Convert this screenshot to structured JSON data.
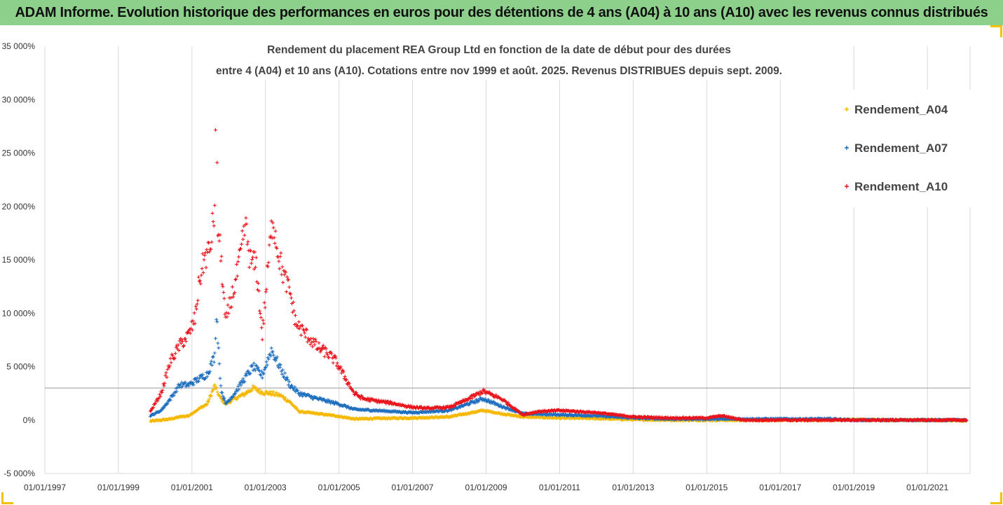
{
  "header": {
    "title": "ADAM Informe. Evolution historique des performances en euros pour des détentions de 4 ans (A04) à 10 ans (A10) avec les revenus connus distribués"
  },
  "colors": {
    "header_bg": "#8dd08b",
    "frame_accent": "#f2c200",
    "A04": "#f5b800",
    "A07": "#1f6fbf",
    "A10": "#e8141c"
  },
  "chart_data": {
    "type": "scatter",
    "title_line1": "Rendement du placement REA Group Ltd en fonction de la date de début pour des durées",
    "title_line2": "entre 4 (A04) et 10 ans (A10). Cotations entre nov 1999 et août. 2025. Revenus DISTRIBUES depuis sept. 2009.",
    "xlabel": "",
    "ylabel": "",
    "xlim": [
      "1997-01-01",
      "2022-03-01"
    ],
    "ylim": [
      -5000,
      35000
    ],
    "y_ticks": [
      -5000,
      0,
      5000,
      10000,
      15000,
      20000,
      25000,
      30000,
      35000
    ],
    "y_tick_labels": [
      "-5 000%",
      "0%",
      "5 000%",
      "10 000%",
      "15 000%",
      "20 000%",
      "25 000%",
      "30 000%",
      "35 000%"
    ],
    "x_tick_labels": [
      "01/01/1997",
      "01/01/1999",
      "01/01/2001",
      "01/01/2003",
      "01/01/2005",
      "01/01/2007",
      "01/01/2009",
      "01/01/2011",
      "01/01/2013",
      "01/01/2015",
      "01/01/2017",
      "01/01/2019",
      "01/01/2021"
    ],
    "reference_line_y": 3000,
    "grid": "vertical",
    "legend_position": "right",
    "series": [
      {
        "name": "Rendement_A04",
        "color": "#f5b800",
        "points": [
          [
            "1999-11-15",
            -100
          ],
          [
            "2000-03-01",
            0
          ],
          [
            "2000-06-01",
            100
          ],
          [
            "2000-09-01",
            300
          ],
          [
            "2000-12-01",
            400
          ],
          [
            "2001-03-01",
            1000
          ],
          [
            "2001-06-01",
            1500
          ],
          [
            "2001-08-15",
            3200
          ],
          [
            "2001-10-01",
            2200
          ],
          [
            "2001-12-01",
            1500
          ],
          [
            "2002-03-01",
            2000
          ],
          [
            "2002-06-01",
            2400
          ],
          [
            "2002-09-01",
            3000
          ],
          [
            "2002-12-01",
            2600
          ],
          [
            "2003-03-01",
            2500
          ],
          [
            "2003-06-01",
            2300
          ],
          [
            "2003-09-01",
            1700
          ],
          [
            "2003-12-01",
            800
          ],
          [
            "2004-06-01",
            600
          ],
          [
            "2004-12-01",
            400
          ],
          [
            "2005-06-01",
            100
          ],
          [
            "2006-01-01",
            150
          ],
          [
            "2007-01-01",
            200
          ],
          [
            "2008-01-01",
            300
          ],
          [
            "2008-12-01",
            900
          ],
          [
            "2009-06-01",
            600
          ],
          [
            "2010-01-01",
            300
          ],
          [
            "2011-01-01",
            200
          ],
          [
            "2012-01-01",
            150
          ],
          [
            "2013-01-01",
            50
          ],
          [
            "2014-01-01",
            0
          ],
          [
            "2015-01-01",
            0
          ],
          [
            "2016-01-01",
            0
          ],
          [
            "2017-01-01",
            0
          ],
          [
            "2018-01-01",
            0
          ],
          [
            "2019-01-01",
            50
          ],
          [
            "2020-01-01",
            0
          ],
          [
            "2021-01-01",
            0
          ],
          [
            "2022-02-01",
            -50
          ]
        ]
      },
      {
        "name": "Rendement_A07",
        "color": "#1f6fbf",
        "points": [
          [
            "1999-11-15",
            400
          ],
          [
            "2000-03-01",
            900
          ],
          [
            "2000-06-01",
            2000
          ],
          [
            "2000-09-01",
            3300
          ],
          [
            "2000-12-01",
            3300
          ],
          [
            "2001-03-01",
            3800
          ],
          [
            "2001-06-01",
            4300
          ],
          [
            "2001-08-15",
            6000
          ],
          [
            "2001-09-01",
            10200
          ],
          [
            "2001-10-15",
            3000
          ],
          [
            "2001-12-01",
            1500
          ],
          [
            "2002-03-01",
            2500
          ],
          [
            "2002-06-01",
            3800
          ],
          [
            "2002-09-01",
            5000
          ],
          [
            "2002-12-01",
            4200
          ],
          [
            "2003-03-01",
            6600
          ],
          [
            "2003-06-01",
            4800
          ],
          [
            "2003-09-01",
            3300
          ],
          [
            "2003-12-01",
            2500
          ],
          [
            "2004-06-01",
            2000
          ],
          [
            "2005-01-01",
            1500
          ],
          [
            "2005-06-01",
            1000
          ],
          [
            "2006-01-01",
            900
          ],
          [
            "2007-01-01",
            700
          ],
          [
            "2008-01-01",
            900
          ],
          [
            "2008-12-01",
            2000
          ],
          [
            "2009-06-01",
            1300
          ],
          [
            "2010-01-01",
            600
          ],
          [
            "2011-01-01",
            500
          ],
          [
            "2012-01-01",
            400
          ],
          [
            "2013-01-01",
            200
          ],
          [
            "2014-01-01",
            100
          ],
          [
            "2015-01-01",
            100
          ],
          [
            "2016-01-01",
            100
          ],
          [
            "2017-01-01",
            100
          ],
          [
            "2018-06-01",
            100
          ],
          [
            "2019-01-01",
            0
          ],
          [
            "2020-01-01",
            0
          ],
          [
            "2021-01-01",
            0
          ],
          [
            "2022-02-01",
            0
          ]
        ]
      },
      {
        "name": "Rendement_A10",
        "color": "#e8141c",
        "points": [
          [
            "1999-11-15",
            800
          ],
          [
            "2000-03-01",
            2500
          ],
          [
            "2000-06-01",
            5500
          ],
          [
            "2000-09-01",
            7000
          ],
          [
            "2000-12-01",
            8000
          ],
          [
            "2001-02-01",
            9500
          ],
          [
            "2001-03-15",
            13000
          ],
          [
            "2001-05-01",
            15000
          ],
          [
            "2001-07-01",
            16000
          ],
          [
            "2001-08-15",
            20000
          ],
          [
            "2001-09-01",
            31500
          ],
          [
            "2001-09-15",
            18000
          ],
          [
            "2001-10-15",
            15500
          ],
          [
            "2001-12-01",
            9000
          ],
          [
            "2002-01-15",
            11000
          ],
          [
            "2002-03-01",
            12500
          ],
          [
            "2002-05-01",
            15500
          ],
          [
            "2002-06-15",
            18300
          ],
          [
            "2002-08-01",
            15000
          ],
          [
            "2002-10-01",
            14500
          ],
          [
            "2002-12-01",
            8000
          ],
          [
            "2003-02-01",
            15000
          ],
          [
            "2003-03-15",
            19000
          ],
          [
            "2003-05-01",
            16000
          ],
          [
            "2003-07-01",
            13500
          ],
          [
            "2003-09-01",
            12000
          ],
          [
            "2003-11-01",
            9000
          ],
          [
            "2004-03-01",
            7800
          ],
          [
            "2004-06-01",
            6800
          ],
          [
            "2004-09-01",
            6300
          ],
          [
            "2004-12-01",
            5500
          ],
          [
            "2005-03-01",
            4000
          ],
          [
            "2005-06-01",
            2500
          ],
          [
            "2005-09-01",
            2000
          ],
          [
            "2006-01-01",
            1800
          ],
          [
            "2006-06-01",
            1600
          ],
          [
            "2007-01-01",
            1200
          ],
          [
            "2007-06-01",
            1100
          ],
          [
            "2008-01-01",
            1200
          ],
          [
            "2008-06-01",
            1800
          ],
          [
            "2008-12-01",
            2700
          ],
          [
            "2009-06-01",
            2000
          ],
          [
            "2010-01-01",
            500
          ],
          [
            "2010-06-01",
            800
          ],
          [
            "2011-01-01",
            900
          ],
          [
            "2012-01-01",
            700
          ],
          [
            "2013-01-01",
            300
          ],
          [
            "2014-01-01",
            200
          ],
          [
            "2015-01-01",
            200
          ],
          [
            "2015-06-01",
            400
          ],
          [
            "2016-01-01",
            0
          ],
          [
            "2017-01-01",
            0
          ],
          [
            "2018-01-01",
            0
          ],
          [
            "2019-01-01",
            0
          ],
          [
            "2020-01-01",
            0
          ],
          [
            "2021-01-01",
            0
          ],
          [
            "2022-02-01",
            0
          ]
        ]
      }
    ]
  }
}
